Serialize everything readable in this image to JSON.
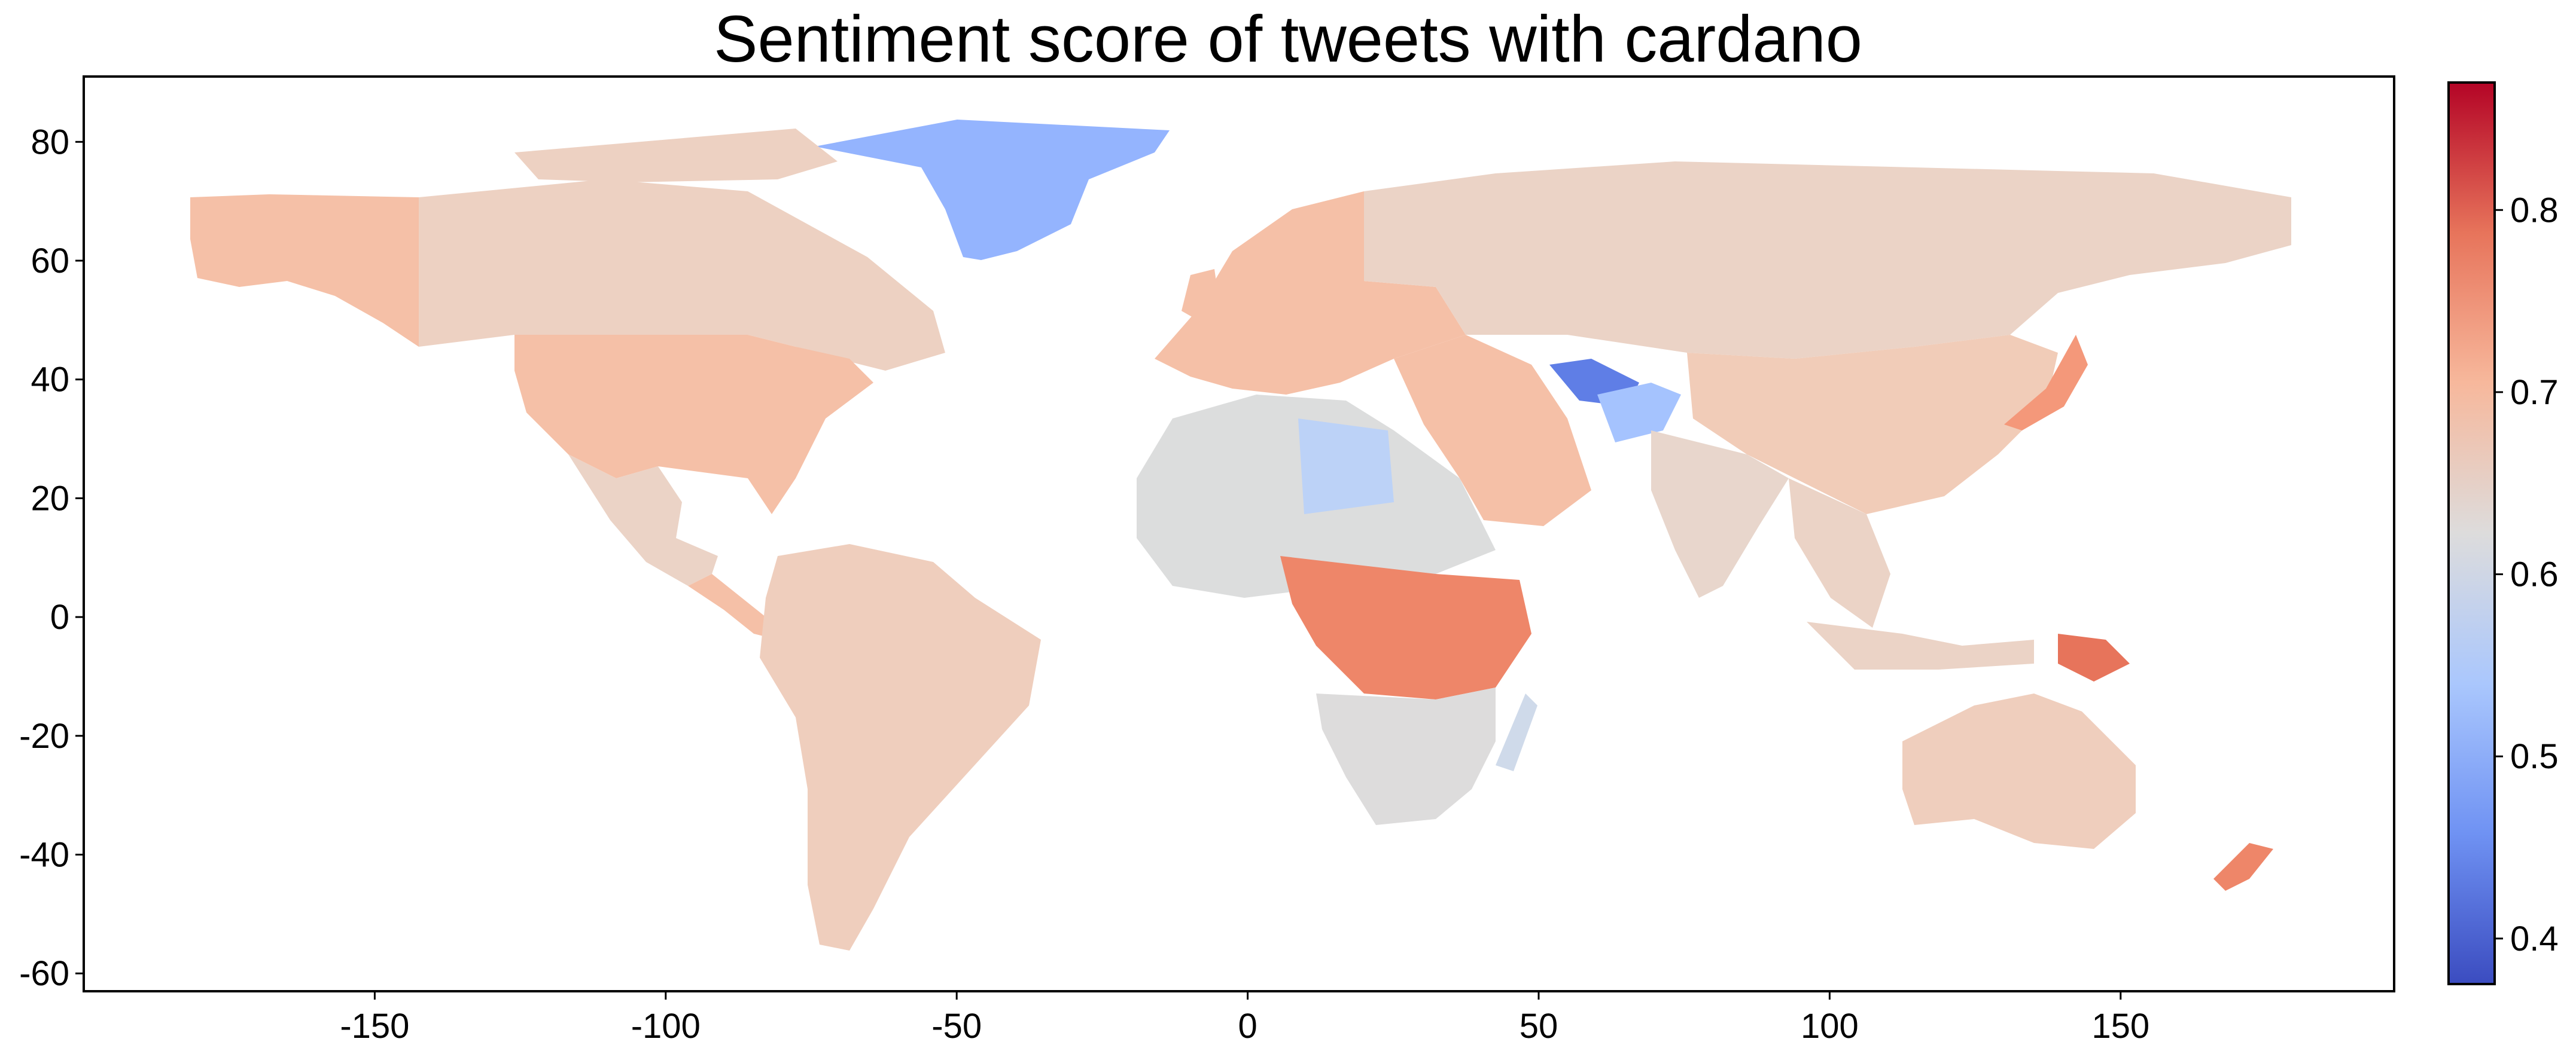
{
  "title": "Sentiment score of tweets with cardano",
  "chart_data": {
    "type": "heatmap",
    "map_kind": "choropleth-world-map",
    "title": "Sentiment score of tweets with cardano",
    "xlabel": "",
    "ylabel": "",
    "xlim": [
      -200,
      197
    ],
    "ylim": [
      -63,
      91
    ],
    "x_ticks": [
      -150,
      -100,
      -50,
      0,
      50,
      100,
      150
    ],
    "y_ticks": [
      -60,
      -40,
      -20,
      0,
      20,
      40,
      60,
      80
    ],
    "colorbar": {
      "colormap": "coolwarm",
      "range": [
        0.375,
        0.87
      ],
      "ticks": [
        0.4,
        0.5,
        0.6,
        0.7,
        0.8
      ],
      "stops": [
        "#3b4cc0",
        "#6f92f3",
        "#aac7fd",
        "#dddcdc",
        "#f7b89c",
        "#e7745b",
        "#b40426"
      ]
    },
    "regions": [
      {
        "region": "Greenland",
        "value": 0.5,
        "color": "#94b4fe"
      },
      {
        "region": "Canada",
        "value": 0.665,
        "color": "#edd1c2"
      },
      {
        "region": "Alaska",
        "value": 0.7,
        "color": "#f5c0a7"
      },
      {
        "region": "United States",
        "value": 0.7,
        "color": "#f5c0a7"
      },
      {
        "region": "Mexico",
        "value": 0.66,
        "color": "#ebd3c6"
      },
      {
        "region": "Central America",
        "value": 0.7,
        "color": "#f5c0a7"
      },
      {
        "region": "South America",
        "value": 0.67,
        "color": "#efcebd"
      },
      {
        "region": "Europe",
        "value": 0.7,
        "color": "#f5c0a7"
      },
      {
        "region": "Russia",
        "value": 0.66,
        "color": "#ebd3c6"
      },
      {
        "region": "China",
        "value": 0.68,
        "color": "#f1ccb8"
      },
      {
        "region": "India",
        "value": 0.655,
        "color": "#e8d6cc"
      },
      {
        "region": "Southeast Asia",
        "value": 0.66,
        "color": "#ebd3c6"
      },
      {
        "region": "Japan",
        "value": 0.72,
        "color": "#f4987a"
      },
      {
        "region": "Turkmenistan",
        "value": 0.44,
        "color": "#5f7ee6"
      },
      {
        "region": "Afghanistan",
        "value": 0.52,
        "color": "#a5c3fe"
      },
      {
        "region": "North Africa",
        "value": 0.62,
        "color": "#dcdddd"
      },
      {
        "region": "Libya",
        "value": 0.56,
        "color": "#bcd2f7"
      },
      {
        "region": "Central Africa",
        "value": 0.76,
        "color": "#ee8669"
      },
      {
        "region": "Southern Africa",
        "value": 0.63,
        "color": "#dddcdc"
      },
      {
        "region": "Madagascar",
        "value": 0.6,
        "color": "#cfdaea"
      },
      {
        "region": "Australia",
        "value": 0.67,
        "color": "#efcebd"
      },
      {
        "region": "Papua New Guinea",
        "value": 0.78,
        "color": "#e7745b"
      },
      {
        "region": "New Zealand",
        "value": 0.76,
        "color": "#ee8669"
      }
    ]
  }
}
